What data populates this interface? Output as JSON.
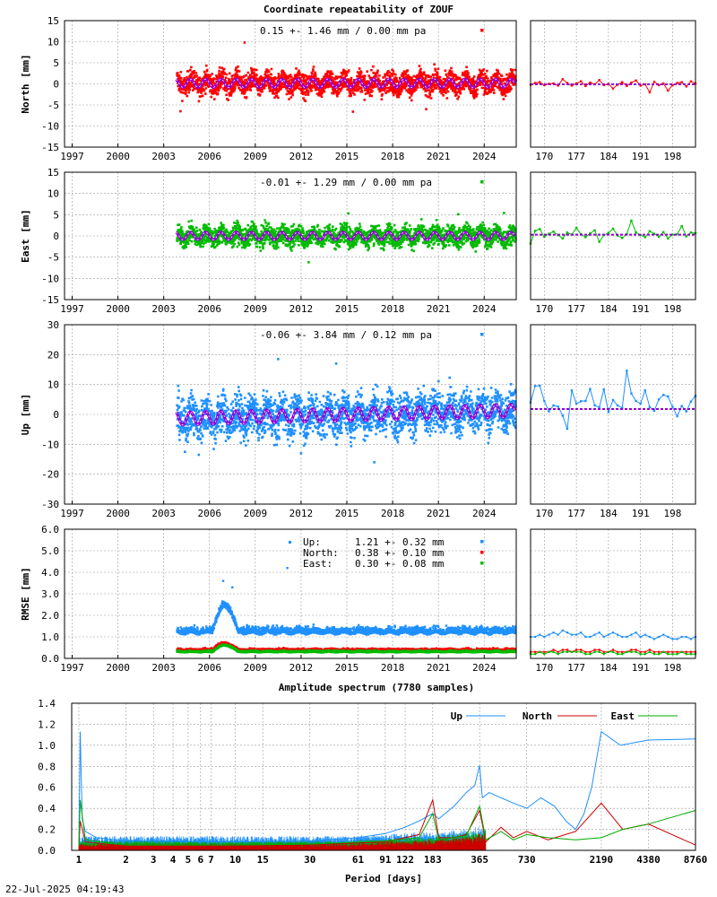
{
  "title": "Coordinate repeatability of ZOUF",
  "timestamp": "22-Jul-2025 04:19:43",
  "colors": {
    "north": "#ff0000",
    "east": "#00bb00",
    "up": "#1e90ff",
    "model": "#9400d3",
    "spectrum_up": "#1e90ff",
    "spectrum_north": "#cc0000",
    "spectrum_east": "#00aa00"
  },
  "chart_data": [
    {
      "id": "north",
      "type": "scatter",
      "ylabel": "North [mm]",
      "ylim": [
        -15,
        15
      ],
      "yticks": [
        "-15",
        "-10",
        "-5",
        "0",
        "5",
        "10",
        "15"
      ],
      "xlim": [
        1996,
        2025.6
      ],
      "xticks": [
        "1997",
        "2000",
        "2003",
        "2006",
        "2009",
        "2012",
        "2015",
        "2018",
        "2021",
        "2024"
      ],
      "annotation": "0.15 +- 1.46 mm /  0.00 mm pa",
      "data_start": 2003.3,
      "data_end": 2025.5,
      "spread_mm": 1.46,
      "mean_mm": 0.15,
      "annual_amplitude_mm": 1.0,
      "outliers": [
        [
          2007.8,
          9.8
        ],
        [
          2003.6,
          -6.5
        ],
        [
          2014.9,
          -6.6
        ],
        [
          2019.7,
          -6.0
        ]
      ],
      "zoom": {
        "xlim": [
          167,
          203
        ],
        "xticks": [
          "170",
          "177",
          "184",
          "191",
          "198"
        ],
        "values": [
          -0.2,
          0.2,
          0.4,
          -0.3,
          0.0,
          0.1,
          -0.4,
          1.1,
          0.2,
          -0.4,
          0.1,
          0.6,
          -0.5,
          0.3,
          -0.1,
          0.9,
          -0.3,
          0.0,
          -1.1,
          -0.2,
          0.4,
          -0.5,
          0.3,
          0.8,
          -0.4,
          -0.1,
          -2.0,
          0.5,
          -0.3,
          0.1,
          -1.6,
          -0.3,
          0.2,
          0.4,
          -0.6,
          0.6,
          0.1
        ],
        "model_level": -0.1
      }
    },
    {
      "id": "east",
      "type": "scatter",
      "ylabel": "East [mm]",
      "ylim": [
        -15,
        15
      ],
      "yticks": [
        "-15",
        "-10",
        "-5",
        "0",
        "5",
        "10",
        "15"
      ],
      "xlim": [
        1996,
        2025.6
      ],
      "xticks": [
        "1997",
        "2000",
        "2003",
        "2006",
        "2009",
        "2012",
        "2015",
        "2018",
        "2021",
        "2024"
      ],
      "annotation": "-0.01 +- 1.29 mm /  0.00 mm pa",
      "data_start": 2003.3,
      "data_end": 2025.5,
      "spread_mm": 1.29,
      "mean_mm": -0.01,
      "annual_amplitude_mm": 0.9,
      "outliers": [
        [
          2012.0,
          -6.2
        ],
        [
          2014.6,
          5.3
        ],
        [
          2021.8,
          5.1
        ],
        [
          2024.8,
          5.4
        ]
      ],
      "zoom": {
        "xlim": [
          167,
          203
        ],
        "xticks": [
          "170",
          "177",
          "184",
          "191",
          "198"
        ],
        "values": [
          -1.8,
          1.2,
          1.6,
          -0.2,
          0.5,
          1.0,
          0.2,
          -0.6,
          0.8,
          0.3,
          1.9,
          0.4,
          -0.3,
          0.6,
          1.3,
          -1.4,
          0.2,
          0.7,
          1.7,
          0.1,
          -0.5,
          0.4,
          3.6,
          0.8,
          0.2,
          -0.3,
          1.1,
          0.5,
          -0.2,
          0.9,
          -0.6,
          0.3,
          0.4,
          2.3,
          -0.1,
          0.8,
          0.6
        ],
        "model_level": 0.3
      }
    },
    {
      "id": "up",
      "type": "scatter",
      "ylabel": "Up [mm]",
      "ylim": [
        -30,
        30
      ],
      "yticks": [
        "-30",
        "-20",
        "-10",
        "0",
        "10",
        "20",
        "30"
      ],
      "xlim": [
        1996,
        2025.6
      ],
      "xticks": [
        "1997",
        "2000",
        "2003",
        "2006",
        "2009",
        "2012",
        "2015",
        "2018",
        "2021",
        "2024"
      ],
      "annotation": "-0.06 +- 3.84 mm /  0.12 mm pa",
      "data_start": 2003.3,
      "data_end": 2025.5,
      "spread_mm": 3.84,
      "mean_mm": -0.06,
      "annual_amplitude_mm": 2.2,
      "trend_mm_pa": 0.12,
      "outliers": [
        [
          2010.0,
          18.5
        ],
        [
          2013.8,
          17.0
        ],
        [
          2004.8,
          -13.5
        ],
        [
          2016.3,
          -16.0
        ],
        [
          2011.5,
          -13.0
        ]
      ],
      "zoom": {
        "xlim": [
          167,
          203
        ],
        "xticks": [
          "170",
          "177",
          "184",
          "191",
          "198"
        ],
        "values": [
          4.0,
          9.5,
          9.6,
          4.5,
          1.0,
          3.0,
          2.6,
          -0.4,
          -4.8,
          8.0,
          3.6,
          4.4,
          4.5,
          8.5,
          3.0,
          2.4,
          8.4,
          0.8,
          4.8,
          3.0,
          2.2,
          14.6,
          7.0,
          4.5,
          3.6,
          8.0,
          2.5,
          1.2,
          5.0,
          6.5,
          6.0,
          2.5,
          -0.6,
          2.8,
          1.0,
          4.3,
          6.2
        ],
        "model_level": 1.8
      }
    },
    {
      "id": "rmse",
      "type": "scatter",
      "ylabel": "RMSE [mm]",
      "ylim": [
        0,
        6
      ],
      "yticks": [
        "0.0",
        "1.0",
        "2.0",
        "3.0",
        "4.0",
        "5.0",
        "6.0"
      ],
      "xlim": [
        1996,
        2025.6
      ],
      "xticks": [
        "1997",
        "2000",
        "2003",
        "2006",
        "2009",
        "2012",
        "2015",
        "2018",
        "2021",
        "2024"
      ],
      "legend": [
        {
          "name": "Up:",
          "value": "1.21 +- 0.32 mm",
          "series": "up"
        },
        {
          "name": "North:",
          "value": "0.38 +- 0.10 mm",
          "series": "north"
        },
        {
          "name": "East:",
          "value": "0.30 +- 0.08 mm",
          "series": "east"
        }
      ],
      "data_start": 2003.3,
      "data_end": 2025.5,
      "levels": {
        "up": 1.21,
        "north": 0.38,
        "east": 0.3
      },
      "spreads": {
        "up": 0.32,
        "north": 0.1,
        "east": 0.08
      },
      "up_outliers": [
        [
          2010.6,
          4.2
        ],
        [
          2006.4,
          3.6
        ],
        [
          2007.0,
          3.3
        ]
      ],
      "zoom": {
        "xlim": [
          167,
          203
        ],
        "xticks": [
          "170",
          "177",
          "184",
          "191",
          "198"
        ],
        "up": [
          1.0,
          1.0,
          1.1,
          1.0,
          1.1,
          1.2,
          1.1,
          1.3,
          1.2,
          1.1,
          1.1,
          1.2,
          1.0,
          1.0,
          1.1,
          1.2,
          1.0,
          1.1,
          1.2,
          1.1,
          1.0,
          1.0,
          1.1,
          1.2,
          1.0,
          1.1,
          1.0,
          0.9,
          1.0,
          1.1,
          1.0,
          0.9,
          0.9,
          1.0,
          1.0,
          0.9,
          1.0
        ],
        "north": [
          0.3,
          0.3,
          0.3,
          0.3,
          0.3,
          0.4,
          0.3,
          0.4,
          0.4,
          0.3,
          0.4,
          0.4,
          0.3,
          0.3,
          0.4,
          0.4,
          0.3,
          0.3,
          0.4,
          0.3,
          0.3,
          0.3,
          0.4,
          0.4,
          0.3,
          0.3,
          0.4,
          0.3,
          0.3,
          0.3,
          0.3,
          0.3,
          0.3,
          0.3,
          0.3,
          0.3,
          0.3
        ],
        "east": [
          0.2,
          0.2,
          0.3,
          0.2,
          0.3,
          0.3,
          0.2,
          0.3,
          0.3,
          0.3,
          0.3,
          0.3,
          0.2,
          0.2,
          0.3,
          0.3,
          0.2,
          0.3,
          0.3,
          0.2,
          0.2,
          0.3,
          0.3,
          0.3,
          0.2,
          0.2,
          0.3,
          0.2,
          0.2,
          0.3,
          0.2,
          0.2,
          0.2,
          0.3,
          0.2,
          0.2,
          0.2
        ]
      }
    },
    {
      "id": "spectrum",
      "type": "line",
      "title": "Amplitude spectrum (7780 samples)",
      "xlabel": "Period [days]",
      "xscale": "log",
      "xlim": [
        0.9,
        8760
      ],
      "ylim": [
        0,
        1.4
      ],
      "yticks": [
        "0.0",
        "0.2",
        "0.4",
        "0.6",
        "0.8",
        "1.0",
        "1.2",
        "1.4"
      ],
      "xticks": [
        {
          "label": "1",
          "value": 1
        },
        {
          "label": "2",
          "value": 2
        },
        {
          "label": "3",
          "value": 3
        },
        {
          "label": "4",
          "value": 4
        },
        {
          "label": "5",
          "value": 5
        },
        {
          "label": "6",
          "value": 6
        },
        {
          "label": "7",
          "value": 7
        },
        {
          "label": "10",
          "value": 10
        },
        {
          "label": "15",
          "value": 15
        },
        {
          "label": "30",
          "value": 30
        },
        {
          "label": "61",
          "value": 61
        },
        {
          "label": "91",
          "value": 91
        },
        {
          "label": "122",
          "value": 122
        },
        {
          "label": "183",
          "value": 183
        },
        {
          "label": "365",
          "value": 365
        },
        {
          "label": "730",
          "value": 730
        },
        {
          "label": "2190",
          "value": 2190
        },
        {
          "label": "4380",
          "value": 4380
        },
        {
          "label": "8760",
          "value": 8760
        }
      ],
      "gridlines": [
        1,
        2,
        3,
        4,
        5,
        6,
        7,
        10,
        15,
        30,
        61,
        91,
        122,
        183,
        365,
        730,
        2190,
        4380,
        8760
      ],
      "legend": [
        {
          "name": "Up",
          "series": "up"
        },
        {
          "name": "North",
          "series": "north"
        },
        {
          "name": "East",
          "series": "east"
        }
      ],
      "series": [
        {
          "name": "Up",
          "points": [
            [
              1.0,
              0.05
            ],
            [
              1.02,
              1.13
            ],
            [
              1.05,
              0.3
            ],
            [
              1.1,
              0.18
            ],
            [
              1.3,
              0.12
            ],
            [
              2,
              0.09
            ],
            [
              10,
              0.08
            ],
            [
              30,
              0.09
            ],
            [
              61,
              0.12
            ],
            [
              91,
              0.16
            ],
            [
              122,
              0.22
            ],
            [
              150,
              0.28
            ],
            [
              183,
              0.35
            ],
            [
              200,
              0.3
            ],
            [
              250,
              0.42
            ],
            [
              300,
              0.55
            ],
            [
              340,
              0.62
            ],
            [
              365,
              0.81
            ],
            [
              380,
              0.5
            ],
            [
              420,
              0.55
            ],
            [
              500,
              0.5
            ],
            [
              600,
              0.45
            ],
            [
              730,
              0.4
            ],
            [
              900,
              0.5
            ],
            [
              1100,
              0.42
            ],
            [
              1300,
              0.28
            ],
            [
              1500,
              0.2
            ],
            [
              1700,
              0.35
            ],
            [
              1900,
              0.6
            ],
            [
              2190,
              1.13
            ],
            [
              2900,
              1.0
            ],
            [
              4380,
              1.05
            ],
            [
              8760,
              1.06
            ]
          ]
        },
        {
          "name": "North",
          "points": [
            [
              1.0,
              0.03
            ],
            [
              1.02,
              0.28
            ],
            [
              1.1,
              0.08
            ],
            [
              2,
              0.04
            ],
            [
              10,
              0.04
            ],
            [
              30,
              0.05
            ],
            [
              91,
              0.08
            ],
            [
              150,
              0.15
            ],
            [
              183,
              0.48
            ],
            [
              200,
              0.12
            ],
            [
              250,
              0.12
            ],
            [
              300,
              0.15
            ],
            [
              365,
              0.38
            ],
            [
              400,
              0.08
            ],
            [
              500,
              0.22
            ],
            [
              600,
              0.12
            ],
            [
              730,
              0.18
            ],
            [
              1000,
              0.1
            ],
            [
              1500,
              0.18
            ],
            [
              2190,
              0.45
            ],
            [
              3000,
              0.2
            ],
            [
              4380,
              0.25
            ],
            [
              8760,
              0.05
            ]
          ]
        },
        {
          "name": "East",
          "points": [
            [
              1.0,
              0.04
            ],
            [
              1.02,
              0.48
            ],
            [
              1.1,
              0.1
            ],
            [
              2,
              0.05
            ],
            [
              10,
              0.05
            ],
            [
              30,
              0.06
            ],
            [
              91,
              0.09
            ],
            [
              150,
              0.12
            ],
            [
              183,
              0.35
            ],
            [
              200,
              0.1
            ],
            [
              250,
              0.12
            ],
            [
              300,
              0.14
            ],
            [
              365,
              0.42
            ],
            [
              400,
              0.1
            ],
            [
              500,
              0.18
            ],
            [
              600,
              0.1
            ],
            [
              730,
              0.15
            ],
            [
              1000,
              0.12
            ],
            [
              1500,
              0.1
            ],
            [
              2190,
              0.12
            ],
            [
              3000,
              0.2
            ],
            [
              4380,
              0.25
            ],
            [
              8760,
              0.38
            ]
          ]
        }
      ]
    }
  ]
}
